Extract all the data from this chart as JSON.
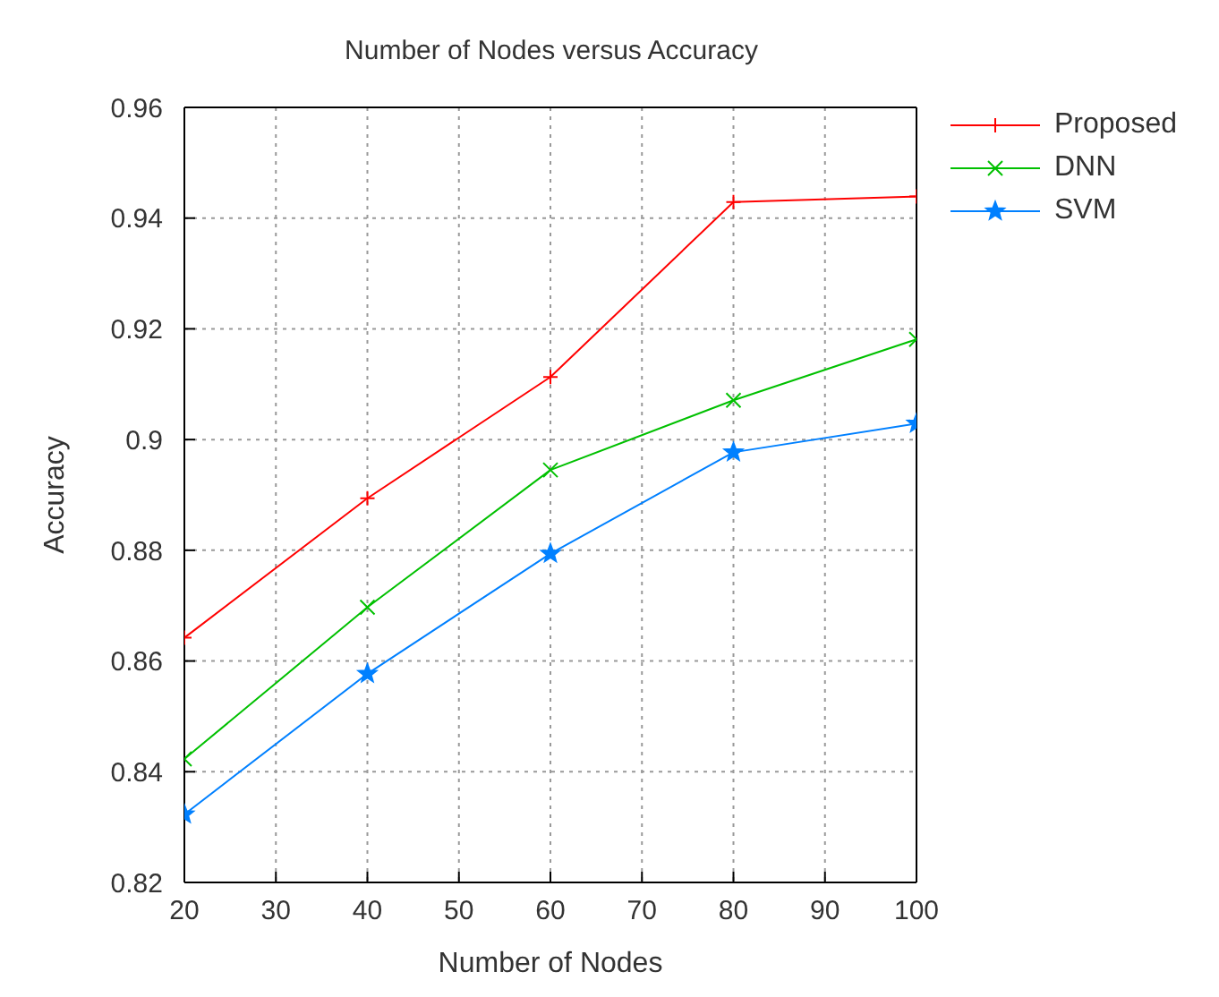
{
  "chart_data": {
    "type": "line",
    "title": "Number of Nodes versus Accuracy",
    "xlabel": "Number of Nodes",
    "ylabel": "Accuracy",
    "x": [
      20,
      40,
      60,
      80,
      100
    ],
    "series": [
      {
        "name": "Proposed",
        "color": "#ff0000",
        "marker": "cross",
        "values": [
          0.8642,
          0.8894,
          0.9113,
          0.9429,
          0.9439
        ]
      },
      {
        "name": "DNN",
        "color": "#00c000",
        "marker": "cross",
        "values": [
          0.8423,
          0.8697,
          0.8945,
          0.9071,
          0.9181
        ]
      },
      {
        "name": "SVM",
        "color": "#0080ff",
        "marker": "star",
        "values": [
          0.8323,
          0.8577,
          0.8794,
          0.8977,
          0.9029
        ]
      }
    ],
    "xlim": [
      20,
      100
    ],
    "xticks": [
      20,
      30,
      40,
      50,
      60,
      70,
      80,
      90,
      100
    ],
    "ylim": [
      0.82,
      0.96
    ],
    "yticks": [
      0.82,
      0.84,
      0.86,
      0.88,
      0.9,
      0.92,
      0.94,
      0.96
    ],
    "grid": true,
    "legend": "top right",
    "line_style": "solid"
  }
}
